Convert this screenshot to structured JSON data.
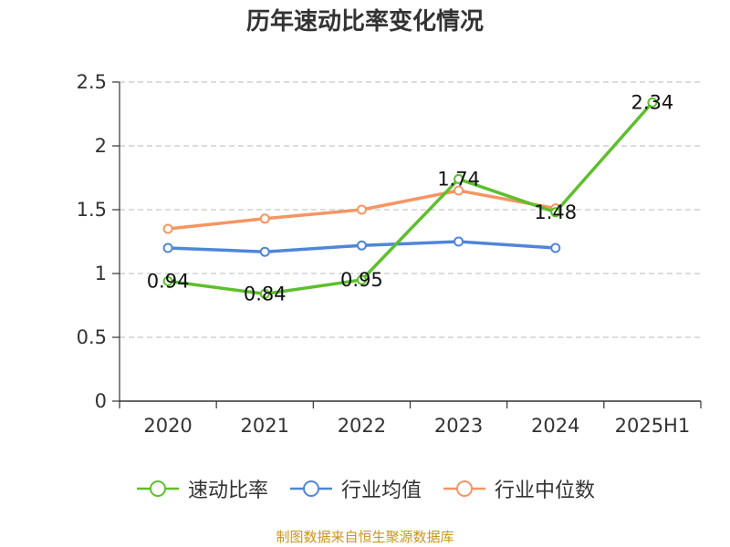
{
  "title": "历年速动比率变化情况",
  "source_note": "制图数据来自恒生聚源数据库",
  "chart_data": {
    "type": "line",
    "title": "历年速动比率变化情况",
    "categories": [
      "2020",
      "2021",
      "2022",
      "2023",
      "2024",
      "2025H1"
    ],
    "ylim": [
      0,
      2.5
    ],
    "yticks": [
      0,
      0.5,
      1,
      1.5,
      2,
      2.5
    ],
    "ytick_labels": [
      "0",
      "0.5",
      "1",
      "1.5",
      "2",
      "2.5"
    ],
    "grid": true,
    "legend_position": "bottom",
    "series": [
      {
        "name": "速动比率",
        "color": "#5dbf2d",
        "values": [
          0.94,
          0.84,
          0.95,
          1.74,
          1.48,
          2.34
        ],
        "labels": [
          "0.94",
          "0.84",
          "0.95",
          "1.74",
          "1.48",
          "2.34"
        ]
      },
      {
        "name": "行业均值",
        "color": "#4f86d9",
        "values": [
          1.2,
          1.17,
          1.22,
          1.25,
          1.2,
          null
        ]
      },
      {
        "name": "行业中位数",
        "color": "#f59563",
        "values": [
          1.35,
          1.43,
          1.5,
          1.65,
          1.51,
          null
        ]
      }
    ]
  }
}
